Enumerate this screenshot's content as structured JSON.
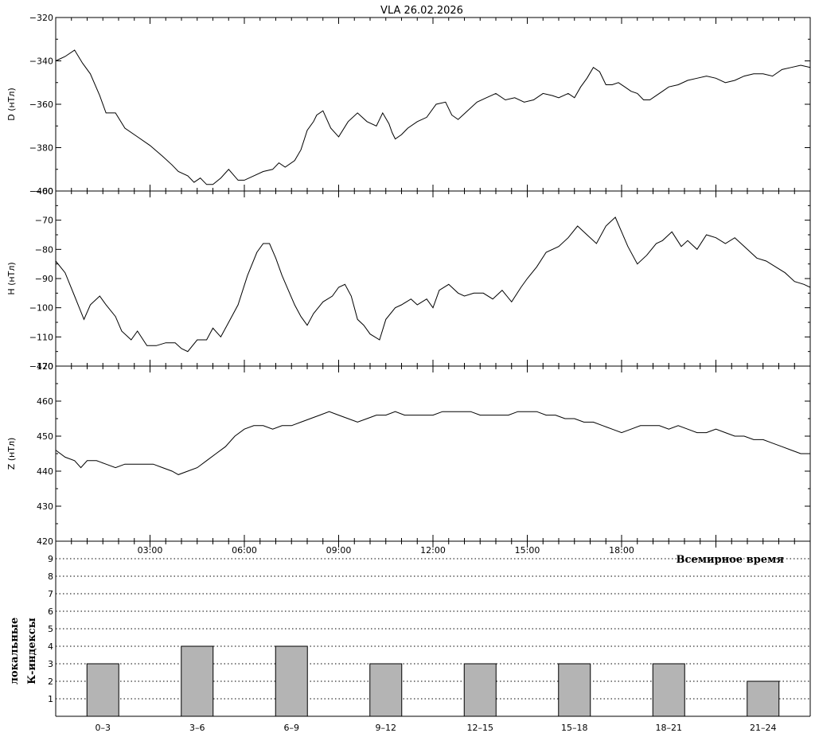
{
  "title": "VLA   26.02.2026",
  "chart_data": [
    {
      "type": "line",
      "ylabel": "D (нТл)",
      "ylim": [
        -400,
        -320
      ],
      "yticks": [
        -400,
        -380,
        -360,
        -340,
        -320
      ],
      "x_unit": "hours UT",
      "x": [
        0,
        0.3,
        0.6,
        0.85,
        1.1,
        1.4,
        1.6,
        1.9,
        2.2,
        2.6,
        3,
        3.4,
        3.7,
        3.9,
        4.2,
        4.4,
        4.6,
        4.8,
        5,
        5.25,
        5.5,
        5.8,
        6,
        6.3,
        6.6,
        6.9,
        7.1,
        7.3,
        7.6,
        7.8,
        8,
        8.2,
        8.3,
        8.5,
        8.75,
        9,
        9.3,
        9.6,
        9.9,
        10.2,
        10.4,
        10.6,
        10.7,
        10.8,
        11,
        11.2,
        11.5,
        11.8,
        12.1,
        12.4,
        12.6,
        12.8,
        13.1,
        13.4,
        13.7,
        14,
        14.3,
        14.6,
        14.9,
        15.2,
        15.5,
        15.8,
        16,
        16.3,
        16.5,
        16.7,
        16.9,
        17.1,
        17.3,
        17.5,
        17.7,
        17.9,
        18.1,
        18.3,
        18.5,
        18.7,
        18.9,
        19.1,
        19.3,
        19.5,
        19.8,
        20.1,
        20.4,
        20.7,
        21,
        21.3,
        21.6,
        21.9,
        22.2,
        22.5,
        22.8,
        23.1,
        23.4,
        23.7,
        24
      ],
      "values": [
        -340,
        -338,
        -335,
        -341,
        -346,
        -356,
        -364,
        -364,
        -371,
        -375,
        -379,
        -384,
        -388,
        -391,
        -393,
        -396,
        -394,
        -397,
        -397,
        -394,
        -390,
        -395,
        -395,
        -393,
        -391,
        -390,
        -387,
        -389,
        -386,
        -381,
        -372,
        -368,
        -365,
        -363,
        -371,
        -375,
        -368,
        -364,
        -368,
        -370,
        -364,
        -369,
        -373,
        -376,
        -374,
        -371,
        -368,
        -366,
        -360,
        -359,
        -365,
        -367,
        -363,
        -359,
        -357,
        -355,
        -358,
        -357,
        -359,
        -358,
        -355,
        -356,
        -357,
        -355,
        -357,
        -352,
        -348,
        -343,
        -345,
        -351,
        -351,
        -350,
        -352,
        -354,
        -355,
        -358,
        -358,
        -356,
        -354,
        -352,
        -351,
        -349,
        -348,
        -347,
        -348,
        -350,
        -349,
        -347,
        -346,
        -346,
        -347,
        -344,
        -343,
        -342,
        -343
      ]
    },
    {
      "type": "line",
      "ylabel": "H (нТл)",
      "ylim": [
        -120,
        -60
      ],
      "yticks": [
        -120,
        -110,
        -100,
        -90,
        -80,
        -70,
        -60
      ],
      "x_unit": "hours UT",
      "x": [
        0,
        0.3,
        0.6,
        0.9,
        1.1,
        1.4,
        1.6,
        1.9,
        2.1,
        2.4,
        2.6,
        2.9,
        3.2,
        3.5,
        3.8,
        4,
        4.2,
        4.5,
        4.8,
        5,
        5.25,
        5.5,
        5.8,
        6.1,
        6.4,
        6.6,
        6.8,
        7,
        7.2,
        7.4,
        7.6,
        7.8,
        8,
        8.2,
        8.5,
        8.8,
        9,
        9.2,
        9.4,
        9.6,
        9.8,
        10,
        10.3,
        10.5,
        10.8,
        11,
        11.3,
        11.5,
        11.8,
        12,
        12.2,
        12.5,
        12.8,
        13,
        13.3,
        13.6,
        13.9,
        14.2,
        14.5,
        14.8,
        15,
        15.3,
        15.6,
        16,
        16.3,
        16.6,
        16.9,
        17.2,
        17.5,
        17.8,
        18,
        18.2,
        18.5,
        18.8,
        19.1,
        19.3,
        19.6,
        19.9,
        20.1,
        20.4,
        20.7,
        21,
        21.3,
        21.6,
        22,
        22.3,
        22.6,
        22.9,
        23.2,
        23.5,
        23.8,
        24
      ],
      "values": [
        -84,
        -88,
        -96,
        -104,
        -99,
        -96,
        -99,
        -103,
        -108,
        -111,
        -108,
        -113,
        -113,
        -112,
        -112,
        -114,
        -115,
        -111,
        -111,
        -107,
        -110,
        -105,
        -99,
        -89,
        -81,
        -78,
        -78,
        -83,
        -89,
        -94,
        -99,
        -103,
        -106,
        -102,
        -98,
        -96,
        -93,
        -92,
        -96,
        -104,
        -106,
        -109,
        -111,
        -104,
        -100,
        -99,
        -97,
        -99,
        -97,
        -100,
        -94,
        -92,
        -95,
        -96,
        -95,
        -95,
        -97,
        -94,
        -98,
        -93,
        -90,
        -86,
        -81,
        -79,
        -76,
        -72,
        -75,
        -78,
        -72,
        -69,
        -74,
        -79,
        -85,
        -82,
        -78,
        -77,
        -74,
        -79,
        -77,
        -80,
        -75,
        -76,
        -78,
        -76,
        -80,
        -83,
        -84,
        -86,
        -88,
        -91,
        -92,
        -93
      ]
    },
    {
      "type": "line",
      "ylabel": "Z (нТл)",
      "ylim": [
        420,
        470
      ],
      "yticks": [
        420,
        430,
        440,
        450,
        460,
        470
      ],
      "x_unit": "hours UT",
      "x": [
        0,
        0.3,
        0.6,
        0.8,
        1,
        1.3,
        1.6,
        1.9,
        2.2,
        2.5,
        2.8,
        3.1,
        3.4,
        3.7,
        3.9,
        4.2,
        4.5,
        4.8,
        5.1,
        5.4,
        5.7,
        6,
        6.3,
        6.6,
        6.9,
        7.2,
        7.5,
        7.8,
        8.1,
        8.4,
        8.7,
        9,
        9.3,
        9.6,
        9.9,
        10.2,
        10.5,
        10.8,
        11.1,
        11.4,
        11.7,
        12,
        12.3,
        12.6,
        12.9,
        13.2,
        13.5,
        13.8,
        14.1,
        14.4,
        14.7,
        15,
        15.3,
        15.6,
        15.9,
        16.2,
        16.5,
        16.8,
        17.1,
        17.4,
        17.7,
        18,
        18.3,
        18.6,
        18.9,
        19.2,
        19.5,
        19.8,
        20.1,
        20.4,
        20.7,
        21,
        21.3,
        21.6,
        21.9,
        22.2,
        22.5,
        22.8,
        23.1,
        23.4,
        23.7,
        24
      ],
      "values": [
        446,
        444,
        443,
        441,
        443,
        443,
        442,
        441,
        442,
        442,
        442,
        442,
        441,
        440,
        439,
        440,
        441,
        443,
        445,
        447,
        450,
        452,
        453,
        453,
        452,
        453,
        453,
        454,
        455,
        456,
        457,
        456,
        455,
        454,
        455,
        456,
        456,
        457,
        456,
        456,
        456,
        456,
        457,
        457,
        457,
        457,
        456,
        456,
        456,
        456,
        457,
        457,
        457,
        456,
        456,
        455,
        455,
        454,
        454,
        453,
        452,
        451,
        452,
        453,
        453,
        453,
        452,
        453,
        452,
        451,
        451,
        452,
        451,
        450,
        450,
        449,
        449,
        448,
        447,
        446,
        445,
        445
      ]
    },
    {
      "type": "bar",
      "ylabel": "локальные К-индексы",
      "ylim": [
        0,
        10
      ],
      "yticks": [
        1,
        2,
        3,
        4,
        5,
        6,
        7,
        8,
        9
      ],
      "categories": [
        "0–3",
        "3–6",
        "6–9",
        "9–12",
        "12–15",
        "15–18",
        "18–21",
        "21–24"
      ],
      "values": [
        3,
        4,
        4,
        3,
        3,
        3,
        3,
        2
      ],
      "grid": "dotted horizontal",
      "bar_color": "#b4b4b4",
      "xaxis_time_ticks": [
        "03:00",
        "06:00",
        "09:00",
        "12:00",
        "15:00",
        "18:00"
      ],
      "xlabel": "Всемирное время"
    }
  ]
}
